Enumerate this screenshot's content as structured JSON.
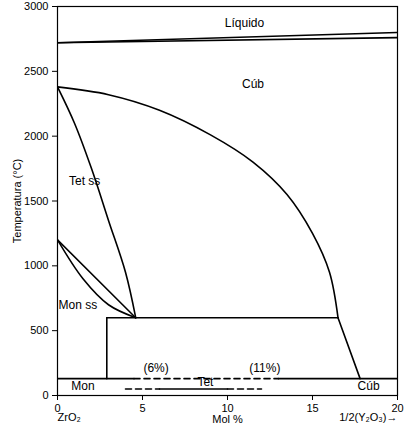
{
  "chart_data": {
    "type": "line",
    "xlabel": "Mol %",
    "ylabel": "Temperatura (°C)",
    "xlim": [
      0,
      20
    ],
    "ylim": [
      0,
      3000
    ],
    "xticks": [
      0,
      5,
      10,
      15,
      20
    ],
    "yticks": [
      0,
      500,
      1000,
      1500,
      2000,
      2500,
      3000
    ],
    "grid": false,
    "series": [
      {
        "color": "#000000",
        "line_style": "solid",
        "x": [
          0,
          20
        ],
        "values": [
          2720,
          2800
        ]
      },
      {
        "color": "#000000",
        "line_style": "solid",
        "x": [
          0,
          20
        ],
        "values": [
          2720,
          2760
        ]
      },
      {
        "color": "#000000",
        "line_style": "solid",
        "x": [
          0,
          3,
          6,
          9,
          11.5,
          13.5,
          15,
          16,
          16.5
        ],
        "values": [
          2380,
          2320,
          2200,
          2010,
          1800,
          1550,
          1250,
          950,
          600
        ]
      },
      {
        "color": "#000000",
        "line_style": "solid",
        "x": [
          0,
          1,
          2,
          3,
          4,
          4.6
        ],
        "values": [
          2380,
          2100,
          1750,
          1350,
          950,
          600
        ]
      },
      {
        "color": "#000000",
        "line_style": "solid",
        "x": [
          0,
          4.6
        ],
        "values": [
          1200,
          600
        ]
      },
      {
        "color": "#000000",
        "line_style": "solid",
        "x": [
          0,
          1.5,
          3,
          4.6
        ],
        "values": [
          1200,
          900,
          700,
          600
        ]
      },
      {
        "color": "#000000",
        "line_style": "solid",
        "x": [
          2.9,
          16.5
        ],
        "values": [
          600,
          600
        ]
      },
      {
        "color": "#000000",
        "line_style": "solid",
        "x": [
          2.9,
          2.9
        ],
        "values": [
          600,
          130
        ]
      },
      {
        "color": "#000000",
        "line_style": "solid",
        "x": [
          16.5,
          17.8
        ],
        "values": [
          600,
          130
        ]
      },
      {
        "color": "#000000",
        "line_style": "solid",
        "x": [
          0,
          4.5
        ],
        "values": [
          130,
          130
        ]
      },
      {
        "color": "#000000",
        "line_style": "dashed",
        "x": [
          4.5,
          13
        ],
        "values": [
          130,
          130
        ]
      },
      {
        "color": "#000000",
        "line_style": "solid",
        "x": [
          13,
          20
        ],
        "values": [
          130,
          130
        ]
      },
      {
        "color": "#000000",
        "line_style": "dashed",
        "x": [
          4,
          6
        ],
        "values": [
          50,
          50
        ]
      },
      {
        "color": "#000000",
        "line_style": "solid",
        "x": [
          6,
          10
        ],
        "values": [
          50,
          50
        ]
      },
      {
        "color": "#000000",
        "line_style": "dashed",
        "x": [
          10,
          12
        ],
        "values": [
          50,
          50
        ]
      }
    ],
    "annotations": [
      {
        "text": "Líquido",
        "x": 11,
        "y": 2870
      },
      {
        "text": "Cúb",
        "x": 11.5,
        "y": 2400
      },
      {
        "text": "Tet ss",
        "x": 1.6,
        "y": 1650
      },
      {
        "text": "Mon ss",
        "x": 1.2,
        "y": 700
      },
      {
        "text": "Mon",
        "x": 1.5,
        "y": 70
      },
      {
        "text": "(6%)",
        "x": 5.8,
        "y": 210
      },
      {
        "text": "Tet",
        "x": 8.7,
        "y": 100
      },
      {
        "text": "(11%)",
        "x": 12.2,
        "y": 210
      },
      {
        "text": "Cúb",
        "x": 18.3,
        "y": 70
      }
    ],
    "axis_end_labels": [
      {
        "text": "ZrO₂",
        "x": 0
      },
      {
        "text": "1/2(Y₂O₃)→",
        "x": 20
      }
    ]
  }
}
